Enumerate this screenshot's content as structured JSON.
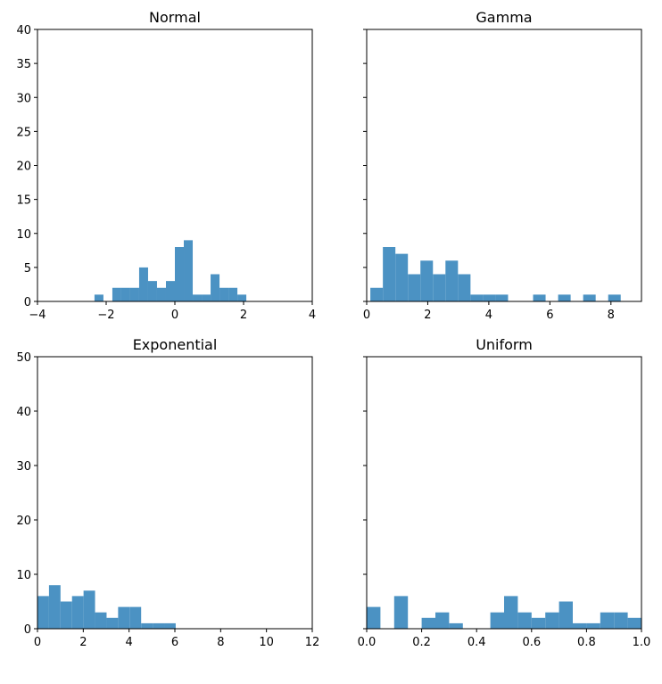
{
  "chart_data": [
    {
      "type": "bar",
      "title": "Normal",
      "bar_color": "#4b92c3",
      "xlim": [
        -4,
        4
      ],
      "ylim": [
        0,
        40
      ],
      "xticks": [
        -4,
        -2,
        0,
        2,
        4
      ],
      "xtick_labels": [
        "−4",
        "−2",
        "0",
        "2",
        "4"
      ],
      "yticks": [
        0,
        5,
        10,
        15,
        20,
        25,
        30,
        35,
        40
      ],
      "ytick_labels": [
        "0",
        "5",
        "10",
        "15",
        "20",
        "25",
        "30",
        "35",
        "40"
      ],
      "show_yticklabels": true,
      "bin_start": -2.34,
      "bin_width": 0.26,
      "values": [
        1,
        0,
        2,
        2,
        2,
        5,
        3,
        2,
        3,
        8,
        9,
        1,
        1,
        4,
        2,
        2,
        1
      ]
    },
    {
      "type": "bar",
      "title": "Gamma",
      "bar_color": "#4b92c3",
      "xlim": [
        0,
        9
      ],
      "ylim": [
        0,
        40
      ],
      "xticks": [
        0,
        2,
        4,
        6,
        8
      ],
      "xtick_labels": [
        "0",
        "2",
        "4",
        "6",
        "8"
      ],
      "yticks": [
        0,
        5,
        10,
        15,
        20,
        25,
        30,
        35,
        40
      ],
      "ytick_labels": [],
      "show_yticklabels": false,
      "bin_start": 0.12,
      "bin_width": 0.41,
      "values": [
        2,
        8,
        7,
        4,
        6,
        4,
        6,
        4,
        1,
        1,
        1,
        0,
        0,
        1,
        0,
        1,
        0,
        1,
        0,
        1
      ]
    },
    {
      "type": "bar",
      "title": "Exponential",
      "bar_color": "#4b92c3",
      "xlim": [
        0,
        12
      ],
      "ylim": [
        0,
        50
      ],
      "xticks": [
        0,
        2,
        4,
        6,
        8,
        10,
        12
      ],
      "xtick_labels": [
        "0",
        "2",
        "4",
        "6",
        "8",
        "10",
        "12"
      ],
      "yticks": [
        0,
        10,
        20,
        30,
        40,
        50
      ],
      "ytick_labels": [
        "0",
        "10",
        "20",
        "30",
        "40",
        "50"
      ],
      "show_yticklabels": true,
      "bin_start": 0.0,
      "bin_width": 0.503,
      "values": [
        6,
        8,
        5,
        6,
        7,
        3,
        2,
        4,
        4,
        1,
        1,
        1
      ]
    },
    {
      "type": "bar",
      "title": "Uniform",
      "bar_color": "#4b92c3",
      "xlim": [
        0,
        1
      ],
      "ylim": [
        0,
        50
      ],
      "xticks": [
        0,
        0.2,
        0.4,
        0.6,
        0.8,
        1.0
      ],
      "xtick_labels": [
        "0.0",
        "0.2",
        "0.4",
        "0.6",
        "0.8",
        "1.0"
      ],
      "yticks": [
        0,
        10,
        20,
        30,
        40,
        50
      ],
      "ytick_labels": [],
      "show_yticklabels": false,
      "bin_start": 0.0,
      "bin_width": 0.05,
      "values": [
        4,
        0,
        6,
        0,
        2,
        3,
        1,
        0,
        0,
        3,
        6,
        3,
        2,
        3,
        5,
        1,
        1,
        3,
        3,
        2
      ]
    }
  ]
}
